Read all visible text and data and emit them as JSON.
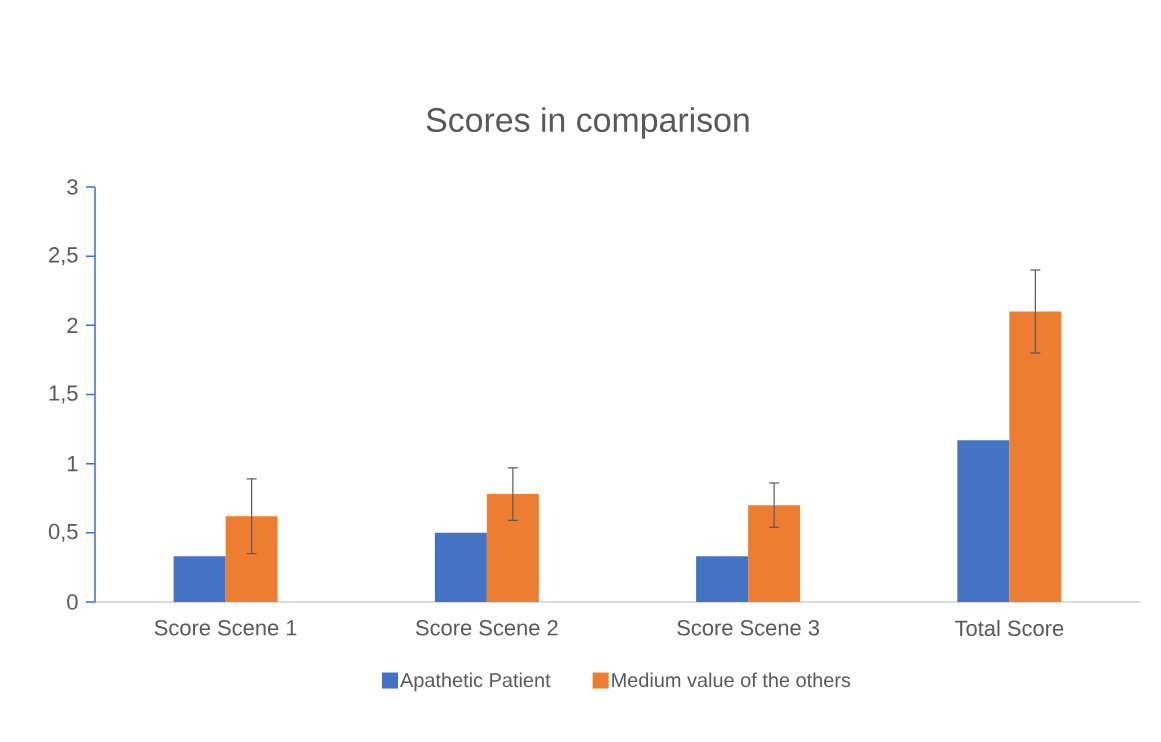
{
  "chart_data": {
    "type": "bar",
    "title": "Scores in comparison",
    "categories": [
      "Score Scene 1",
      "Score Scene 2",
      "Score Scene 3",
      "Total Score"
    ],
    "series": [
      {
        "name": "Apathetic Patient",
        "color": "#4472c4",
        "values": [
          0.33,
          0.5,
          0.33,
          1.17
        ]
      },
      {
        "name": "Medium value of the others",
        "color": "#ed7d31",
        "values": [
          0.62,
          0.78,
          0.7,
          2.1
        ],
        "errors": [
          0.27,
          0.19,
          0.16,
          0.3
        ]
      }
    ],
    "ylim": [
      0,
      3
    ],
    "yticks": [
      0,
      {
        "value": 0.5,
        "label": "0,5"
      },
      1,
      {
        "value": 1.5,
        "label": "1,5"
      },
      2,
      {
        "value": 2.5,
        "label": "2,5"
      },
      3
    ],
    "grid": false,
    "legend": "bottom"
  }
}
